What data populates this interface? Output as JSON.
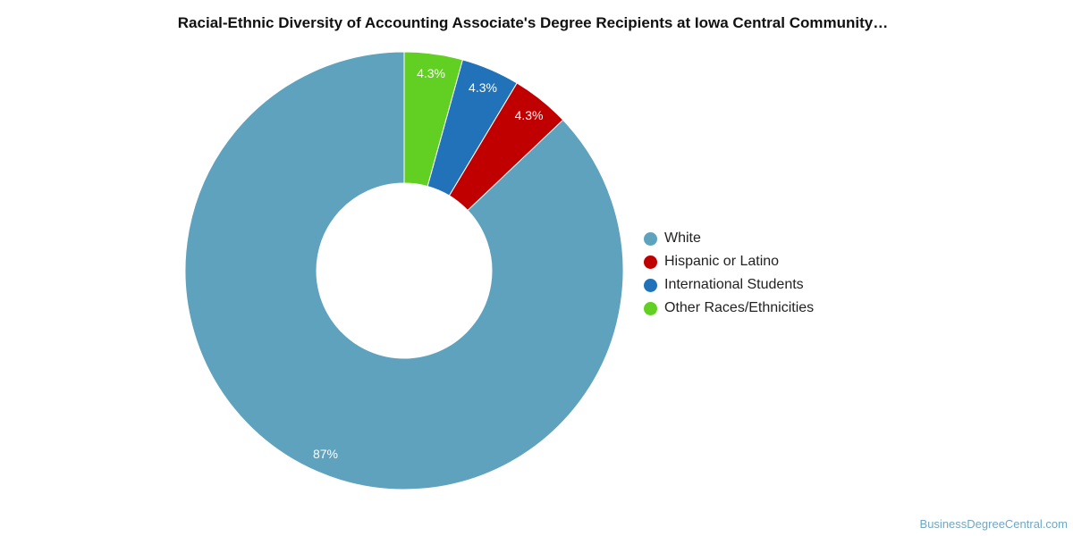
{
  "chart_data": {
    "type": "pie",
    "variant": "donut",
    "title": "Racial-Ethnic Diversity of Accounting Associate's Degree Recipients at Iowa Central Community…",
    "categories": [
      "White",
      "Hispanic or Latino",
      "International Students",
      "Other Races/Ethnicities"
    ],
    "values": [
      87,
      4.3,
      4.3,
      4.3
    ],
    "labels": [
      "87%",
      "4.3%",
      "4.3%",
      "4.3%"
    ],
    "colors": [
      "#5ea2be",
      "#c00000",
      "#2172b8",
      "#62cf23"
    ],
    "legend_position": "right"
  },
  "watermark": "BusinessDegreeCentral.com"
}
